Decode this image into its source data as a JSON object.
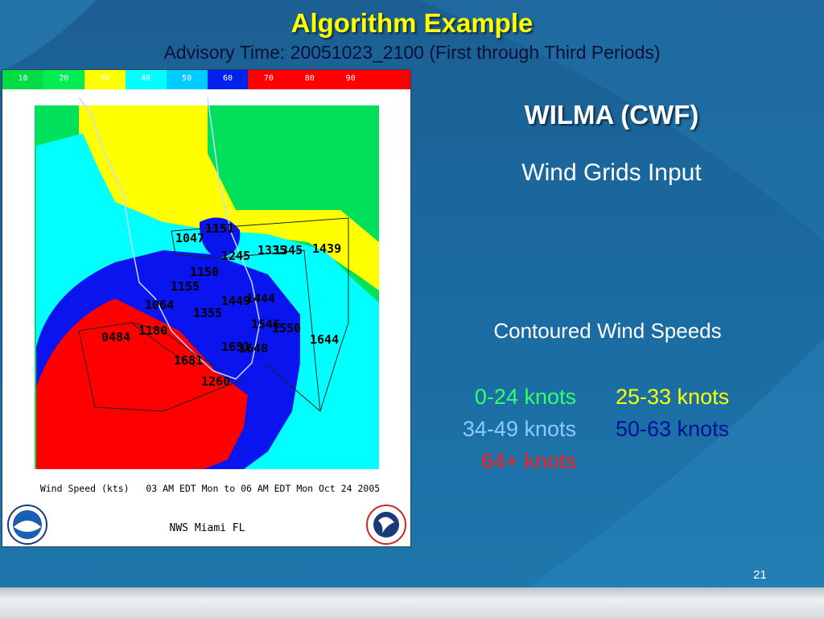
{
  "slide": {
    "title": "Algorithm Example",
    "subtitle": "Advisory Time: 20051023_2100 (First through Third Periods)",
    "page_number": "21"
  },
  "map": {
    "scale_labels": [
      "10",
      "20",
      "30",
      "40",
      "50",
      "60",
      "70",
      "80",
      "90",
      ""
    ],
    "scale_colors": [
      "#00dd44",
      "#00ee55",
      "#ffff00",
      "#00ffff",
      "#00ccff",
      "#0022ee",
      "#ff0000",
      "#ff0000",
      "#ff0000",
      "#ff0000"
    ],
    "zone_labels": [
      "1151",
      "1047",
      "1245",
      "1335",
      "1345",
      "1439",
      "1150",
      "1155",
      "1449",
      "1444",
      "1064",
      "1355",
      "1546",
      "1550",
      "0484",
      "1180",
      "1644",
      "1651",
      "1648",
      "1681",
      "1260"
    ],
    "caption": "Wind Speed (kts)   03 AM EDT Mon to 06 AM EDT Mon Oct 24 2005",
    "office": "NWS Miami FL",
    "colors": {
      "green": "#00e05a",
      "yellow": "#ffff00",
      "cyan": "#00ffff",
      "blue": "#0a14ee",
      "red": "#ff0000"
    }
  },
  "storm": {
    "title": "WILMA (CWF)",
    "subtitle": "Wind Grids Input"
  },
  "legend": {
    "title": "Contoured Wind Speeds",
    "items": [
      {
        "label": "0-24 knots",
        "color": "#33ff66"
      },
      {
        "label": "25-33 knots",
        "color": "#ffff00"
      },
      {
        "label": "34-49 knots",
        "color": "#88ccff"
      },
      {
        "label": "50-63 knots",
        "color": "#001299"
      },
      {
        "label": "64+ knots",
        "color": "#ff1a1a"
      }
    ]
  }
}
